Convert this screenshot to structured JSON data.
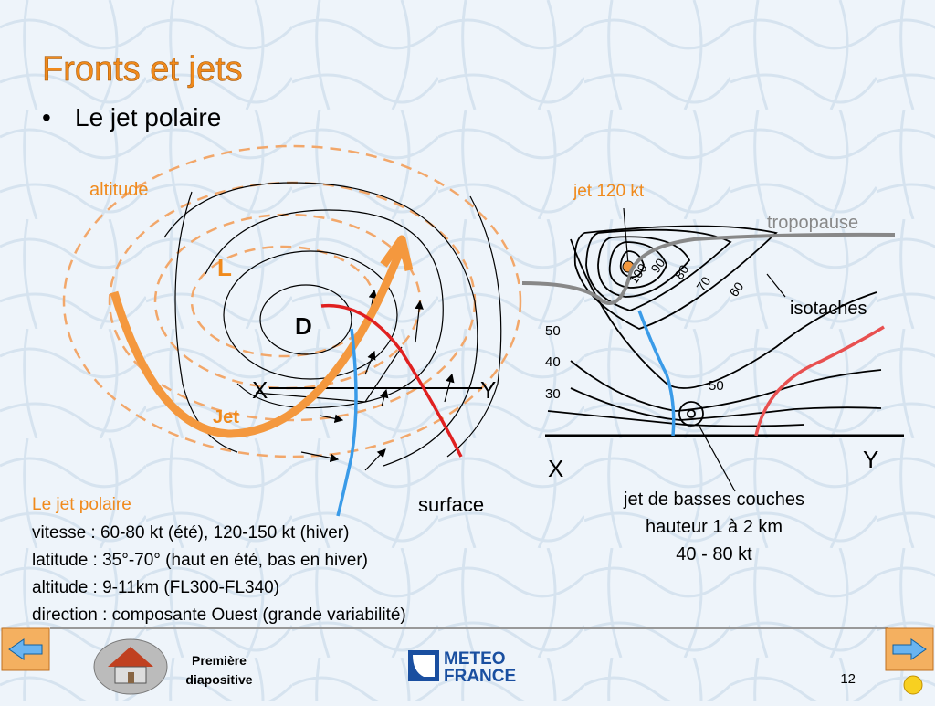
{
  "title": "Fronts et jets",
  "bullet": "Le jet polaire",
  "left_diagram": {
    "altitude": "altitude",
    "low": "L",
    "depression": "D",
    "x": "X",
    "y": "Y",
    "jet": "Jet",
    "surface": "surface"
  },
  "right_diagram": {
    "jet_label": "jet 120 kt",
    "tropopause": "tropopause",
    "isotaches": "isotaches",
    "levels": [
      "50",
      "40",
      "30"
    ],
    "isotach_labels": [
      "100",
      "90",
      "80",
      "70",
      "60"
    ],
    "low_jet_isotach": "50",
    "x": "X",
    "y": "Y",
    "low_jet_lines": [
      "jet de basses couches",
      "hauteur 1 à 2 km",
      "40 - 80 kt"
    ]
  },
  "description": {
    "heading": "Le jet polaire",
    "lines": [
      "vitesse : 60-80 kt (été), 120-150 kt (hiver)",
      "latitude : 35°-70° (haut en été, bas en hiver)",
      "altitude : 9-11km (FL300-FL340)",
      "direction : composante Ouest (grande variabilité)"
    ]
  },
  "footer": {
    "first_slide": [
      "Première",
      "diapositive"
    ],
    "logo": [
      "METEO",
      "FRANCE"
    ],
    "page": "12"
  }
}
